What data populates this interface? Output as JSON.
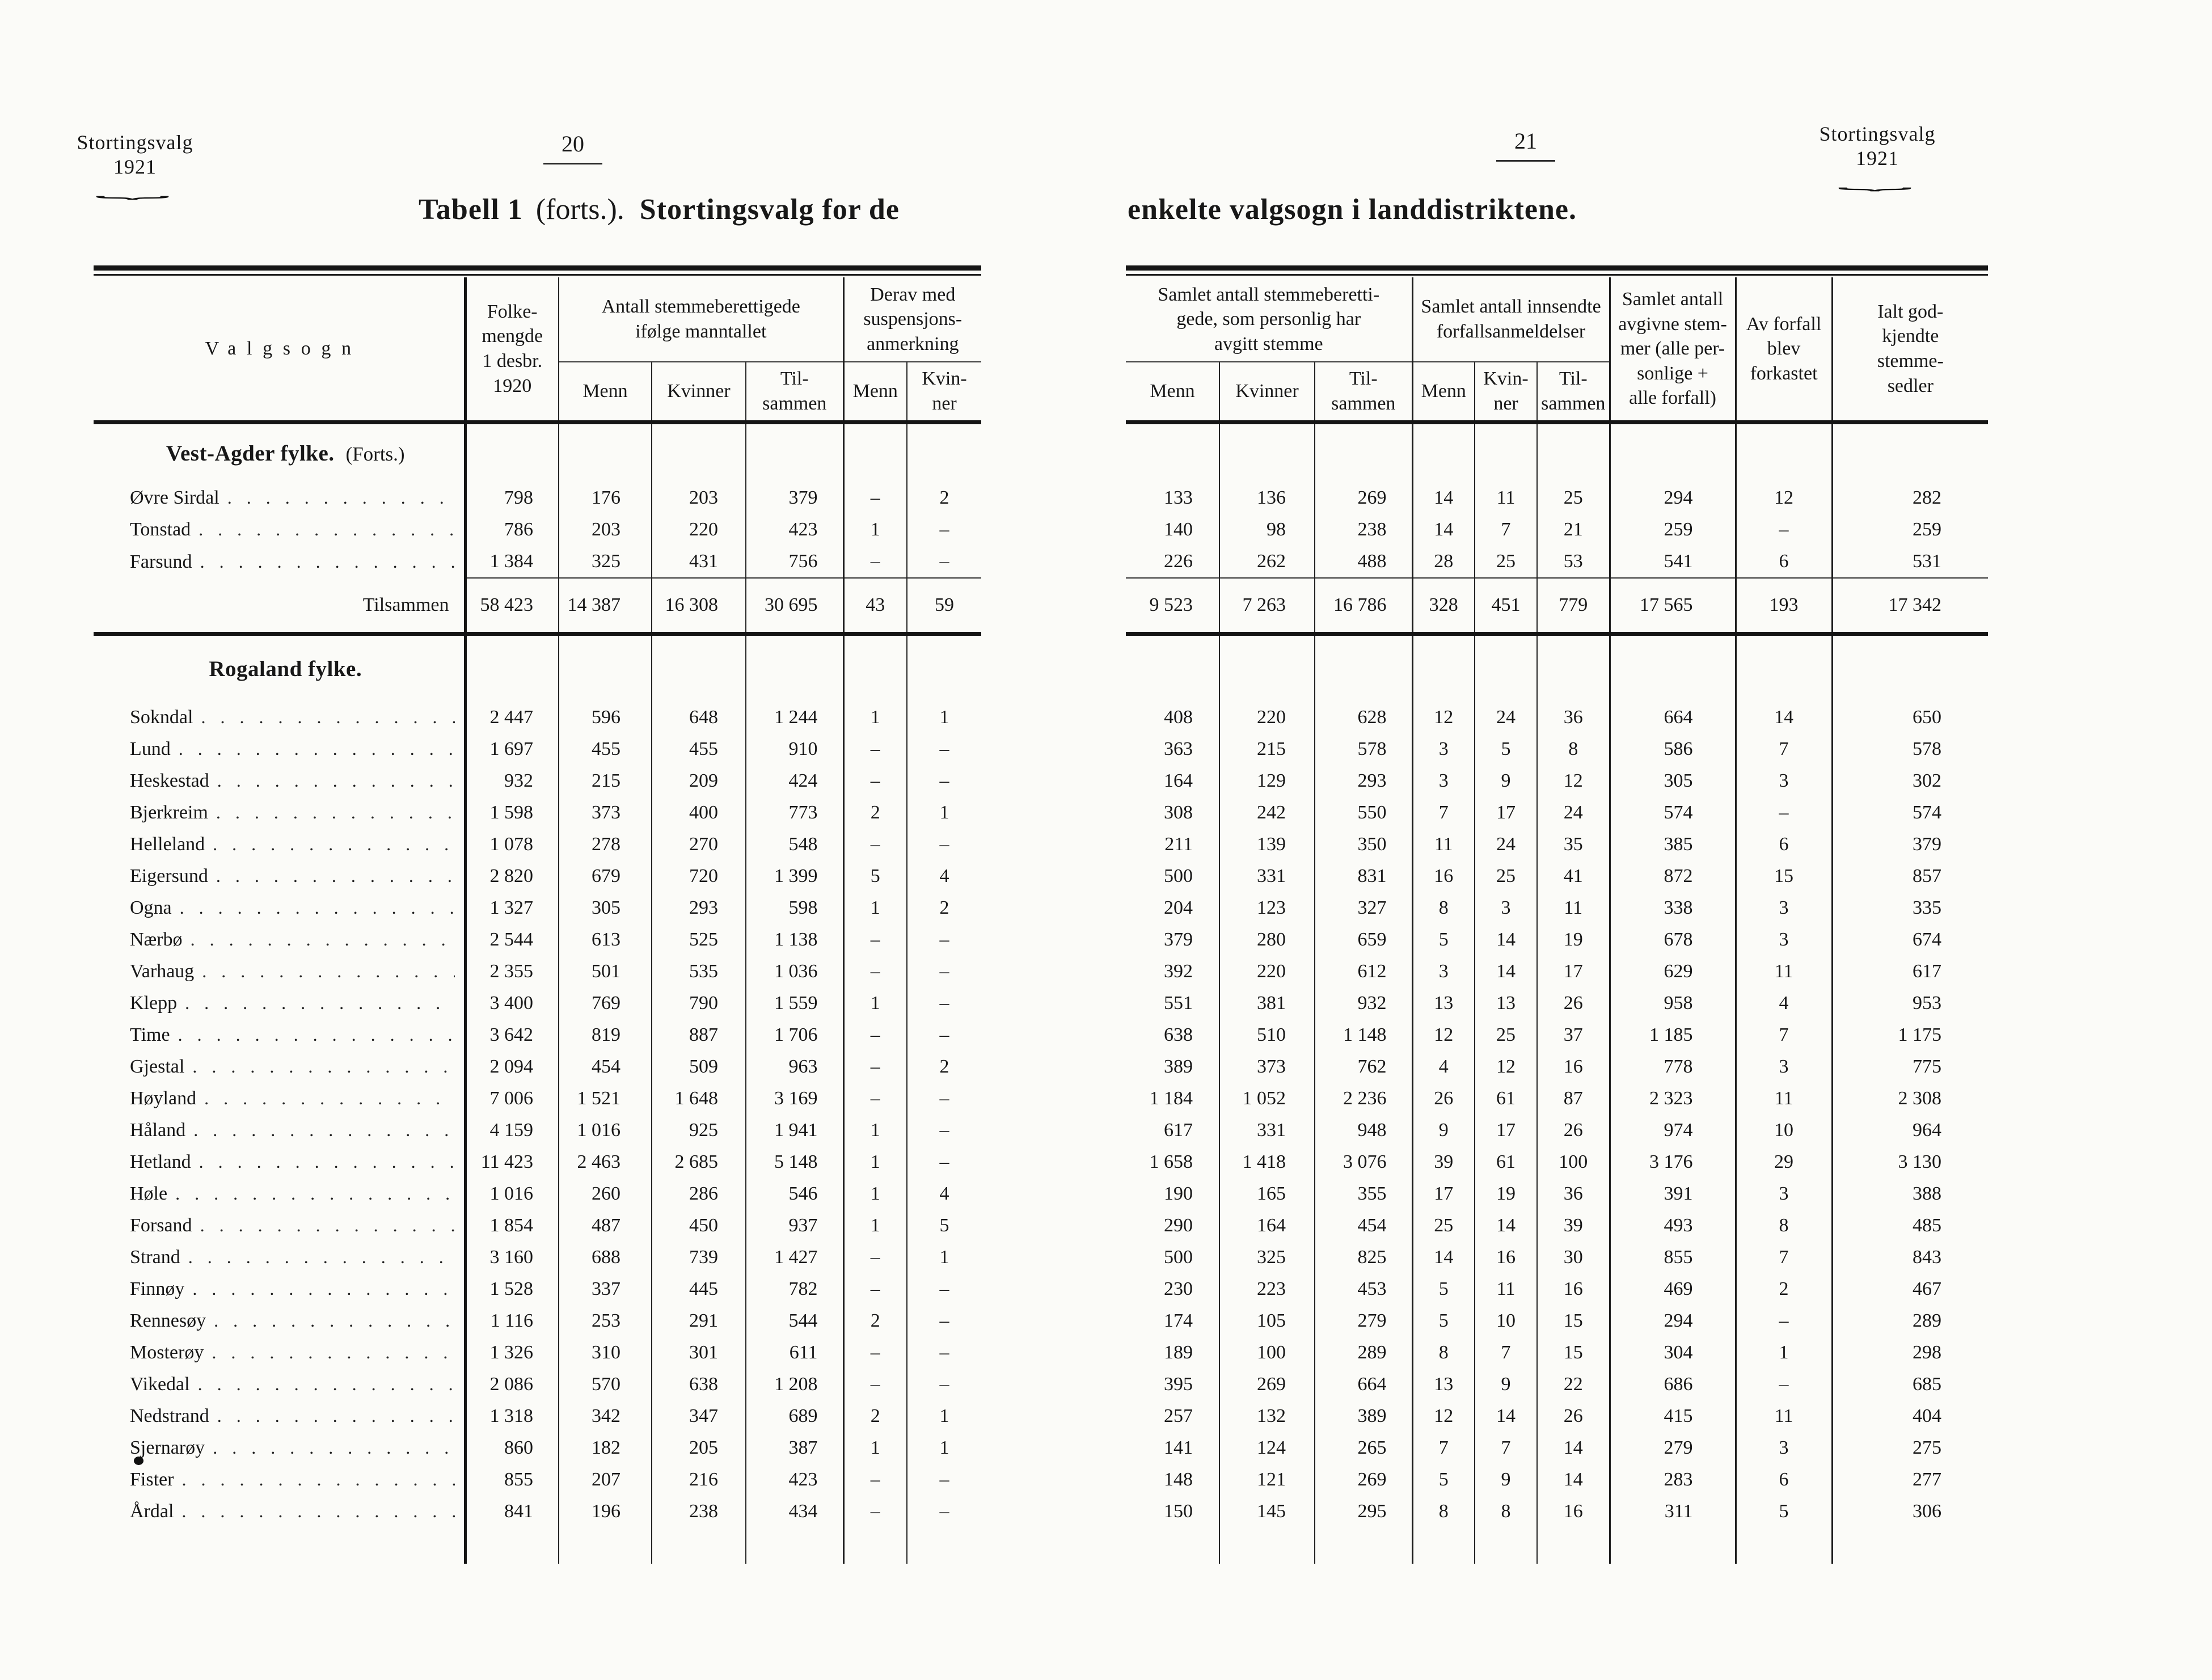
{
  "left": {
    "corner": {
      "line1": "Stortingsvalg",
      "line2": "1921"
    },
    "page_number": "20",
    "title": {
      "bold1": "Tabell 1",
      "paren": "(forts.).",
      "bold2": "Stortingsvalg for de"
    },
    "headers": {
      "valgsogn": "Valgsogn",
      "folkemengde": "Folke-\nmengde\n1 desbr.\n1920",
      "antall_group": "Antall stemmeberettigede\nifølge manntallet",
      "menn": "Menn",
      "kvinner": "Kvinner",
      "tilsammen": "Til-\nsammen",
      "derav_group": "Derav med\nsuspensjons-\nanmerkning",
      "menn2": "Menn",
      "kvin_ner": "Kvin-\nner"
    },
    "total_label": "Tilsammen",
    "sections": [
      {
        "heading": "Vest-Agder fylke.",
        "note": "(Forts.)",
        "rows": [
          {
            "label": "Øvre Sirdal",
            "cells": [
              "798",
              "176",
              "203",
              "379",
              "–",
              "2"
            ]
          },
          {
            "label": "Tonstad",
            "cells": [
              "786",
              "203",
              "220",
              "423",
              "1",
              "–"
            ]
          },
          {
            "label": "Farsund",
            "cells": [
              "1 384",
              "325",
              "431",
              "756",
              "–",
              "–"
            ]
          }
        ],
        "total": [
          "58 423",
          "14 387",
          "16 308",
          "30 695",
          "43",
          "59"
        ]
      },
      {
        "heading": "Rogaland fylke.",
        "note": "",
        "rows": [
          {
            "label": "Sokndal",
            "cells": [
              "2 447",
              "596",
              "648",
              "1 244",
              "1",
              "1"
            ]
          },
          {
            "label": "Lund",
            "cells": [
              "1 697",
              "455",
              "455",
              "910",
              "–",
              "–"
            ]
          },
          {
            "label": "Heskestad",
            "cells": [
              "932",
              "215",
              "209",
              "424",
              "–",
              "–"
            ]
          },
          {
            "label": "Bjerkreim",
            "cells": [
              "1 598",
              "373",
              "400",
              "773",
              "2",
              "1"
            ]
          },
          {
            "label": "Helleland",
            "cells": [
              "1 078",
              "278",
              "270",
              "548",
              "–",
              "–"
            ]
          },
          {
            "label": "Eigersund",
            "cells": [
              "2 820",
              "679",
              "720",
              "1 399",
              "5",
              "4"
            ]
          },
          {
            "label": "Ogna",
            "cells": [
              "1 327",
              "305",
              "293",
              "598",
              "1",
              "2"
            ]
          },
          {
            "label": "Nærbø",
            "cells": [
              "2 544",
              "613",
              "525",
              "1 138",
              "–",
              "–"
            ]
          },
          {
            "label": "Varhaug",
            "cells": [
              "2 355",
              "501",
              "535",
              "1 036",
              "–",
              "–"
            ]
          },
          {
            "label": "Klepp",
            "cells": [
              "3 400",
              "769",
              "790",
              "1 559",
              "1",
              "–"
            ]
          },
          {
            "label": "Time",
            "cells": [
              "3 642",
              "819",
              "887",
              "1 706",
              "–",
              "–"
            ]
          },
          {
            "label": "Gjestal",
            "cells": [
              "2 094",
              "454",
              "509",
              "963",
              "–",
              "2"
            ]
          },
          {
            "label": "Høyland",
            "cells": [
              "7 006",
              "1 521",
              "1 648",
              "3 169",
              "–",
              "–"
            ]
          },
          {
            "label": "Håland",
            "cells": [
              "4 159",
              "1 016",
              "925",
              "1 941",
              "1",
              "–"
            ]
          },
          {
            "label": "Hetland",
            "cells": [
              "11 423",
              "2 463",
              "2 685",
              "5 148",
              "1",
              "–"
            ]
          },
          {
            "label": "Høle",
            "cells": [
              "1 016",
              "260",
              "286",
              "546",
              "1",
              "4"
            ]
          },
          {
            "label": "Forsand",
            "cells": [
              "1 854",
              "487",
              "450",
              "937",
              "1",
              "5"
            ]
          },
          {
            "label": "Strand",
            "cells": [
              "3 160",
              "688",
              "739",
              "1 427",
              "–",
              "1"
            ]
          },
          {
            "label": "Finnøy",
            "cells": [
              "1 528",
              "337",
              "445",
              "782",
              "–",
              "–"
            ]
          },
          {
            "label": "Rennesøy",
            "cells": [
              "1 116",
              "253",
              "291",
              "544",
              "2",
              "–"
            ]
          },
          {
            "label": "Mosterøy",
            "cells": [
              "1 326",
              "310",
              "301",
              "611",
              "–",
              "–"
            ]
          },
          {
            "label": "Vikedal",
            "cells": [
              "2 086",
              "570",
              "638",
              "1 208",
              "–",
              "–"
            ]
          },
          {
            "label": "Nedstrand",
            "cells": [
              "1 318",
              "342",
              "347",
              "689",
              "2",
              "1"
            ]
          },
          {
            "label": "Sjernarøy",
            "cells": [
              "860",
              "182",
              "205",
              "387",
              "1",
              "1"
            ]
          },
          {
            "label": "Fister",
            "cells": [
              "855",
              "207",
              "216",
              "423",
              "–",
              "–"
            ]
          },
          {
            "label": "Årdal",
            "cells": [
              "841",
              "196",
              "238",
              "434",
              "–",
              "–"
            ]
          }
        ]
      }
    ]
  },
  "right": {
    "corner": {
      "line1": "Stortingsvalg",
      "line2": "1921"
    },
    "page_number": "21",
    "title": "enkelte valgsogn i landdistriktene.",
    "headers": {
      "group1": "Samlet antall stemmeberetti-\ngede, som personlig har\navgitt stemme",
      "group2": "Samlet antall innsendte\nforfallsanmeldelser",
      "menn": "Menn",
      "kvinner": "Kvinner",
      "tilsammen": "Til-\nsammen",
      "menn2": "Menn",
      "kvin_ner": "Kvin-\nner",
      "tilsammen2": "Til-\nsammen",
      "avgivne": "Samlet antall\navgivne stem-\nmer (alle per-\nsonlige +\nalle forfall)",
      "forkastet": "Av forfall\nblev\nforkastet",
      "ialt": "Ialt god-\nkjendte\nstemme-\nsedler"
    },
    "sections": [
      {
        "rows": [
          [
            "133",
            "136",
            "269",
            "14",
            "11",
            "25",
            "294",
            "12",
            "282"
          ],
          [
            "140",
            "98",
            "238",
            "14",
            "7",
            "21",
            "259",
            "–",
            "259"
          ],
          [
            "226",
            "262",
            "488",
            "28",
            "25",
            "53",
            "541",
            "6",
            "531"
          ]
        ],
        "total": [
          "9 523",
          "7 263",
          "16 786",
          "328",
          "451",
          "779",
          "17 565",
          "193",
          "17 342"
        ]
      },
      {
        "rows": [
          [
            "408",
            "220",
            "628",
            "12",
            "24",
            "36",
            "664",
            "14",
            "650"
          ],
          [
            "363",
            "215",
            "578",
            "3",
            "5",
            "8",
            "586",
            "7",
            "578"
          ],
          [
            "164",
            "129",
            "293",
            "3",
            "9",
            "12",
            "305",
            "3",
            "302"
          ],
          [
            "308",
            "242",
            "550",
            "7",
            "17",
            "24",
            "574",
            "–",
            "574"
          ],
          [
            "211",
            "139",
            "350",
            "11",
            "24",
            "35",
            "385",
            "6",
            "379"
          ],
          [
            "500",
            "331",
            "831",
            "16",
            "25",
            "41",
            "872",
            "15",
            "857"
          ],
          [
            "204",
            "123",
            "327",
            "8",
            "3",
            "11",
            "338",
            "3",
            "335"
          ],
          [
            "379",
            "280",
            "659",
            "5",
            "14",
            "19",
            "678",
            "3",
            "674"
          ],
          [
            "392",
            "220",
            "612",
            "3",
            "14",
            "17",
            "629",
            "11",
            "617"
          ],
          [
            "551",
            "381",
            "932",
            "13",
            "13",
            "26",
            "958",
            "4",
            "953"
          ],
          [
            "638",
            "510",
            "1 148",
            "12",
            "25",
            "37",
            "1 185",
            "7",
            "1 175"
          ],
          [
            "389",
            "373",
            "762",
            "4",
            "12",
            "16",
            "778",
            "3",
            "775"
          ],
          [
            "1 184",
            "1 052",
            "2 236",
            "26",
            "61",
            "87",
            "2 323",
            "11",
            "2 308"
          ],
          [
            "617",
            "331",
            "948",
            "9",
            "17",
            "26",
            "974",
            "10",
            "964"
          ],
          [
            "1 658",
            "1 418",
            "3 076",
            "39",
            "61",
            "100",
            "3 176",
            "29",
            "3 130"
          ],
          [
            "190",
            "165",
            "355",
            "17",
            "19",
            "36",
            "391",
            "3",
            "388"
          ],
          [
            "290",
            "164",
            "454",
            "25",
            "14",
            "39",
            "493",
            "8",
            "485"
          ],
          [
            "500",
            "325",
            "825",
            "14",
            "16",
            "30",
            "855",
            "7",
            "843"
          ],
          [
            "230",
            "223",
            "453",
            "5",
            "11",
            "16",
            "469",
            "2",
            "467"
          ],
          [
            "174",
            "105",
            "279",
            "5",
            "10",
            "15",
            "294",
            "–",
            "289"
          ],
          [
            "189",
            "100",
            "289",
            "8",
            "7",
            "15",
            "304",
            "1",
            "298"
          ],
          [
            "395",
            "269",
            "664",
            "13",
            "9",
            "22",
            "686",
            "–",
            "685"
          ],
          [
            "257",
            "132",
            "389",
            "12",
            "14",
            "26",
            "415",
            "11",
            "404"
          ],
          [
            "141",
            "124",
            "265",
            "7",
            "7",
            "14",
            "279",
            "3",
            "275"
          ],
          [
            "148",
            "121",
            "269",
            "5",
            "9",
            "14",
            "283",
            "6",
            "277"
          ],
          [
            "150",
            "145",
            "295",
            "8",
            "8",
            "16",
            "311",
            "5",
            "306"
          ]
        ]
      }
    ]
  }
}
